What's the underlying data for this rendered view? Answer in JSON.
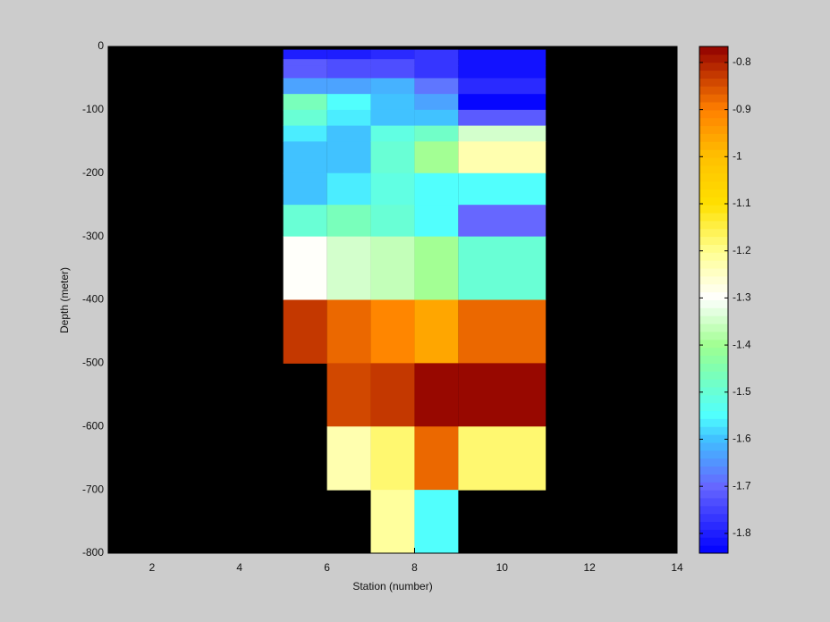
{
  "chart_data": {
    "type": "heatmap",
    "xlabel": "Station (number)",
    "ylabel": "Depth (meter)",
    "x_edges": [
      5,
      6,
      7,
      8,
      9,
      11
    ],
    "y_edges": [
      -5,
      -20,
      -30,
      -50,
      -75,
      -100,
      -125,
      -150,
      -200,
      -250,
      -300,
      -400,
      -500,
      -600,
      -700,
      -800
    ],
    "values": [
      [
        -1.8,
        -1.8,
        -1.78,
        -1.76,
        -1.82
      ],
      [
        -1.71,
        -1.74,
        -1.73,
        -1.76,
        -1.82
      ],
      [
        -1.71,
        -1.74,
        -1.73,
        -1.76,
        -1.82
      ],
      [
        -1.63,
        -1.63,
        -1.62,
        -1.68,
        -1.78
      ],
      [
        -1.47,
        -1.55,
        -1.6,
        -1.63,
        -1.84
      ],
      [
        -1.5,
        -1.57,
        -1.6,
        -1.6,
        -1.71
      ],
      [
        -1.57,
        -1.6,
        -1.52,
        -1.48,
        -1.35
      ],
      [
        -1.6,
        -1.6,
        -1.49,
        -1.4,
        -1.22
      ],
      [
        -1.6,
        -1.56,
        -1.52,
        -1.55,
        -1.55
      ],
      [
        -1.49,
        -1.46,
        -1.49,
        -1.55,
        -1.7
      ],
      [
        -1.3,
        -1.34,
        -1.37,
        -1.4,
        -1.49
      ],
      [
        -0.82,
        -0.88,
        -0.91,
        -0.96,
        -0.88
      ],
      [
        null,
        -0.85,
        -0.82,
        -0.77,
        -0.77
      ],
      [
        null,
        -1.22,
        -1.18,
        -0.88,
        -1.18
      ],
      [
        null,
        null,
        -1.21,
        -1.55,
        null
      ]
    ],
    "xlim": [
      1,
      14
    ],
    "ylim": [
      -800,
      0
    ],
    "xticks": [
      2,
      4,
      6,
      8,
      10,
      12,
      14
    ],
    "yticks": [
      0,
      -100,
      -200,
      -300,
      -400,
      -500,
      -600,
      -700,
      -800
    ],
    "background": "#000000",
    "clim": [
      -1.842,
      -0.766
    ],
    "color_levels": 64,
    "colorscale": [
      [
        -1.842,
        "#0000ff"
      ],
      [
        -1.7,
        "#6666ff"
      ],
      [
        -1.6,
        "#40c0ff"
      ],
      [
        -1.55,
        "#50ffff"
      ],
      [
        -1.45,
        "#80ffb0"
      ],
      [
        -1.4,
        "#a0ff90"
      ],
      [
        -1.3,
        "#ffffff"
      ],
      [
        -1.2,
        "#ffff90"
      ],
      [
        -1.1,
        "#ffe000"
      ],
      [
        -1.0,
        "#ffc000"
      ],
      [
        -0.9,
        "#ff8000"
      ],
      [
        -0.8,
        "#b02000"
      ],
      [
        -0.766,
        "#900000"
      ]
    ],
    "colorbar_ticks": [
      -0.8,
      -0.9,
      -1,
      -1.1,
      -1.2,
      -1.3,
      -1.4,
      -1.5,
      -1.6,
      -1.7,
      -1.8
    ]
  }
}
